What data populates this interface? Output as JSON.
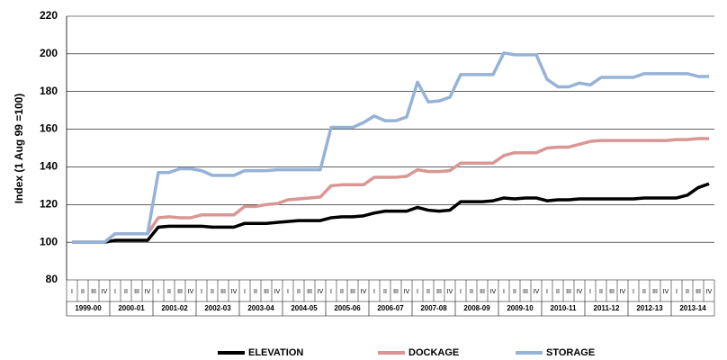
{
  "chart_data": {
    "type": "line",
    "y_label": "Index (1 Aug 99 =100)",
    "categories": [
      "I",
      "II",
      "III",
      "IV",
      "I",
      "II",
      "III",
      "IV",
      "I",
      "II",
      "III",
      "IV",
      "I",
      "II",
      "III",
      "IV",
      "I",
      "II",
      "III",
      "IV",
      "I",
      "II",
      "III",
      "IV",
      "I",
      "II",
      "III",
      "IV",
      "I",
      "II",
      "III",
      "IV",
      "I",
      "II",
      "III",
      "IV",
      "I",
      "II",
      "III",
      "IV",
      "I",
      "II",
      "III",
      "IV",
      "I",
      "II",
      "III",
      "IV",
      "I",
      "II",
      "III",
      "IV",
      "I",
      "II",
      "III",
      "IV",
      "I",
      "II",
      "III",
      "IV"
    ],
    "x_groups": [
      "1999-00",
      "2000-01",
      "2001-02",
      "2002-03",
      "2003-04",
      "2004-05",
      "2005-06",
      "2006-07",
      "2007-08",
      "2008-09",
      "2009-10",
      "2010-11",
      "2011-12",
      "2012-13",
      "2013-14"
    ],
    "ylim": [
      80,
      220
    ],
    "yticks": [
      80,
      100,
      120,
      140,
      160,
      180,
      200,
      220
    ],
    "grid": true,
    "series": [
      {
        "name": "ELEVATION",
        "color": "#000000",
        "values": [
          100,
          100,
          100,
          100,
          101,
          101,
          101,
          101,
          108,
          108.5,
          108.5,
          108.5,
          108.5,
          108,
          108,
          108,
          110,
          110,
          110,
          110.5,
          111,
          111.5,
          111.5,
          111.5,
          113,
          113.5,
          113.5,
          114,
          115.5,
          116.5,
          116.5,
          116.5,
          118.5,
          117,
          116.5,
          117,
          121.5,
          121.5,
          121.5,
          122,
          123.5,
          123,
          123.5,
          123.5,
          122,
          122.5,
          122.5,
          123,
          123,
          123,
          123,
          123,
          123,
          123.5,
          123.5,
          123.5,
          123.5,
          125,
          129,
          131
        ]
      },
      {
        "name": "DOCKAGE",
        "color": "#d99694",
        "values": [
          100,
          100,
          100,
          100,
          104.5,
          104.5,
          104.5,
          104.5,
          113,
          113.5,
          113,
          113,
          114.5,
          114.5,
          114.5,
          114.5,
          119,
          119,
          120,
          120.5,
          122.5,
          123,
          123.5,
          124,
          130,
          130.5,
          130.5,
          130.5,
          134.5,
          134.5,
          134.5,
          135,
          138.5,
          137.5,
          137.5,
          138,
          142,
          142,
          142,
          142,
          146,
          147.5,
          147.5,
          147.5,
          150,
          150.5,
          150.5,
          152,
          153.5,
          154,
          154,
          154,
          154,
          154,
          154,
          154,
          154.5,
          154.5,
          155,
          155
        ]
      },
      {
        "name": "STORAGE",
        "color": "#95b3d7",
        "values": [
          100,
          100,
          100,
          100,
          104.5,
          104.5,
          104.5,
          104.5,
          137,
          137,
          139,
          139,
          138,
          135.5,
          135.5,
          135.5,
          138,
          138,
          138,
          138.5,
          138.5,
          138.5,
          138.5,
          138.5,
          161,
          161,
          161,
          163.5,
          167,
          164.5,
          164.5,
          166.5,
          185,
          174.5,
          175,
          177,
          189,
          189,
          189,
          189,
          200.5,
          199.5,
          199.5,
          199.5,
          186.5,
          182.5,
          182.5,
          184.5,
          183.5,
          187.5,
          187.5,
          187.5,
          187.5,
          189.5,
          189.5,
          189.5,
          189.5,
          189.5,
          188,
          188
        ]
      }
    ]
  }
}
